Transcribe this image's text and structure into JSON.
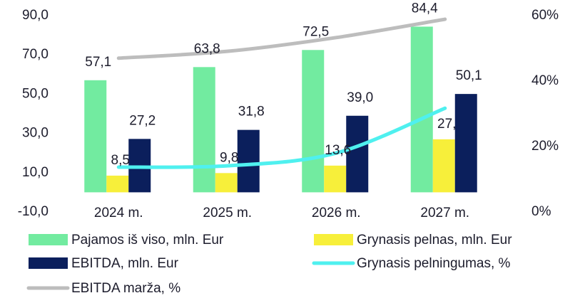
{
  "chart_data": {
    "type": "bar",
    "categories": [
      "2024 m.",
      "2025 m.",
      "2026 m.",
      "2027 m."
    ],
    "ylim": [
      -10,
      90
    ],
    "yticks": [
      {
        "value": -10,
        "label": "-10,0"
      },
      {
        "value": 10,
        "label": "10,0"
      },
      {
        "value": 30,
        "label": "30,0"
      },
      {
        "value": 50,
        "label": "50,0"
      },
      {
        "value": 70,
        "label": "70,0"
      },
      {
        "value": 90,
        "label": "90,0"
      }
    ],
    "y2lim": [
      0,
      60
    ],
    "y2ticks": [
      {
        "value": 0,
        "label": "0%"
      },
      {
        "value": 20,
        "label": "20%"
      },
      {
        "value": 40,
        "label": "40%"
      },
      {
        "value": 60,
        "label": "60%"
      }
    ],
    "series": [
      {
        "name": "Pajamos iš viso, mln. Eur",
        "type": "bar",
        "color": "#72eba0",
        "values": [
          57.1,
          63.8,
          72.5,
          84.4
        ],
        "value_labels": [
          "57,1",
          "63,8",
          "72,5",
          "84,4"
        ]
      },
      {
        "name": "Grynasis pelnas, mln. Eur",
        "type": "bar",
        "color": "#f7ef3a",
        "values": [
          8.5,
          9.8,
          13.6,
          27.0
        ],
        "value_labels": [
          "8,5",
          "9,8",
          "13,6",
          "27,"
        ]
      },
      {
        "name": "EBITDA, mln. Eur",
        "type": "bar",
        "color": "#0b1f5c",
        "values": [
          27.2,
          31.8,
          39.0,
          50.1
        ],
        "value_labels": [
          "27,2",
          "31,8",
          "39,0",
          "50,1"
        ]
      },
      {
        "name": "Grynasis pelningumas, %",
        "type": "line",
        "axis": "y2",
        "color": "#4ff0ef",
        "values": [
          13.7,
          14.1,
          18.0,
          31.7
        ]
      },
      {
        "name": "EBITDA marža, %",
        "type": "line",
        "axis": "y2",
        "color": "#bdbdbd",
        "values": [
          47.0,
          49.1,
          53.3,
          58.9
        ]
      }
    ]
  }
}
